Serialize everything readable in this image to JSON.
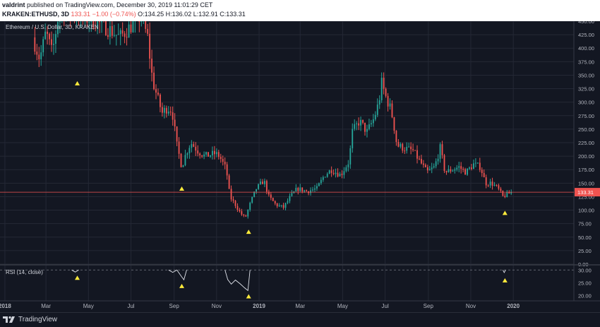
{
  "header": {
    "user": "valdrint",
    "published_text": "published on TradingView.com, December 30, 2019 11:01:29 CET",
    "symbol": "KRAKEN:ETHUSD, 3D",
    "last": "133.31",
    "change": "−1.00 (−0.74%)",
    "ohlc": "O:134.25 H:136.02 L:132.91 C:133.31"
  },
  "colors": {
    "background": "#131722",
    "grid": "#242835",
    "up": "#26a69a",
    "down": "#ef5350",
    "price_line": "#ef5350",
    "marker": "#ffeb3b",
    "rsi_line": "#e0e3eb"
  },
  "chart_data": {
    "type": "candlestick",
    "title": "Ethereum / U.S. Dollar, 3D, KRAKEN",
    "current_price_label": "133.31",
    "current_price": 133.31,
    "ylim": [
      0,
      450
    ],
    "y_ticks": [
      "0.00",
      "25.00",
      "50.00",
      "75.00",
      "100.00",
      "125.00",
      "150.00",
      "175.00",
      "200.00",
      "225.00",
      "250.00",
      "275.00",
      "300.00",
      "325.00",
      "350.00",
      "375.00",
      "400.00",
      "425.00",
      "450.00"
    ],
    "x_ticks": [
      "2018",
      "Mar",
      "May",
      "Jul",
      "Sep",
      "Nov",
      "2019",
      "Mar",
      "May",
      "Jul",
      "Sep",
      "Nov",
      "2020"
    ],
    "price_path": [
      [
        "2018-02-10",
        420
      ],
      [
        "2018-02-20",
        380
      ],
      [
        "2018-03-01",
        430
      ],
      [
        "2018-03-10",
        390
      ],
      [
        "2018-03-20",
        470
      ],
      [
        "2018-04-20",
        460
      ],
      [
        "2018-05-10",
        450
      ],
      [
        "2018-05-25",
        440
      ],
      [
        "2018-06-05",
        430
      ],
      [
        "2018-06-15",
        420
      ],
      [
        "2018-06-30",
        440
      ],
      [
        "2018-07-15",
        460
      ],
      [
        "2018-07-25",
        420
      ],
      [
        "2018-08-01",
        340
      ],
      [
        "2018-08-10",
        300
      ],
      [
        "2018-08-15",
        280
      ],
      [
        "2018-08-22",
        290
      ],
      [
        "2018-08-29",
        285
      ],
      [
        "2018-09-05",
        220
      ],
      [
        "2018-09-12",
        180
      ],
      [
        "2018-09-18",
        205
      ],
      [
        "2018-09-25",
        225
      ],
      [
        "2018-10-05",
        210
      ],
      [
        "2018-10-15",
        200
      ],
      [
        "2018-10-30",
        205
      ],
      [
        "2018-11-05",
        200
      ],
      [
        "2018-11-15",
        175
      ],
      [
        "2018-11-20",
        125
      ],
      [
        "2018-11-28",
        110
      ],
      [
        "2018-12-05",
        95
      ],
      [
        "2018-12-12",
        85
      ],
      [
        "2018-12-20",
        115
      ],
      [
        "2018-12-28",
        140
      ],
      [
        "2019-01-08",
        155
      ],
      [
        "2019-01-15",
        125
      ],
      [
        "2019-01-25",
        110
      ],
      [
        "2019-02-05",
        105
      ],
      [
        "2019-02-15",
        125
      ],
      [
        "2019-02-25",
        140
      ],
      [
        "2019-03-10",
        135
      ],
      [
        "2019-03-25",
        140
      ],
      [
        "2019-04-05",
        165
      ],
      [
        "2019-04-15",
        175
      ],
      [
        "2019-04-28",
        165
      ],
      [
        "2019-05-10",
        190
      ],
      [
        "2019-05-15",
        245
      ],
      [
        "2019-05-25",
        265
      ],
      [
        "2019-06-05",
        245
      ],
      [
        "2019-06-15",
        270
      ],
      [
        "2019-06-22",
        300
      ],
      [
        "2019-06-26",
        335
      ],
      [
        "2019-07-02",
        310
      ],
      [
        "2019-07-08",
        290
      ],
      [
        "2019-07-12",
        270
      ],
      [
        "2019-07-18",
        220
      ],
      [
        "2019-07-28",
        215
      ],
      [
        "2019-08-10",
        210
      ],
      [
        "2019-08-20",
        190
      ],
      [
        "2019-08-30",
        170
      ],
      [
        "2019-09-10",
        180
      ],
      [
        "2019-09-18",
        215
      ],
      [
        "2019-09-25",
        170
      ],
      [
        "2019-10-05",
        175
      ],
      [
        "2019-10-15",
        180
      ],
      [
        "2019-10-25",
        170
      ],
      [
        "2019-11-05",
        185
      ],
      [
        "2019-11-15",
        180
      ],
      [
        "2019-11-22",
        150
      ],
      [
        "2019-12-01",
        150
      ],
      [
        "2019-12-10",
        140
      ],
      [
        "2019-12-17",
        125
      ],
      [
        "2019-12-24",
        130
      ],
      [
        "2019-12-30",
        133
      ]
    ],
    "markers_price": [
      [
        "2018-04-15",
        335
      ],
      [
        "2018-09-12",
        140
      ],
      [
        "2018-12-17",
        60
      ],
      [
        "2019-12-20",
        95
      ]
    ],
    "rsi": {
      "label": "RSI (14, close)",
      "ylim": [
        18,
        32
      ],
      "y_ticks": [
        "20.00",
        "25.00",
        "30.00"
      ],
      "level": 30,
      "segments": [
        [
          [
            "2018-04-07",
            30
          ],
          [
            "2018-04-12",
            29.2
          ],
          [
            "2018-04-17",
            30
          ]
        ],
        [
          [
            "2018-08-24",
            30
          ],
          [
            "2018-08-30",
            29.1
          ],
          [
            "2018-09-05",
            30
          ],
          [
            "2018-09-12",
            27.3
          ],
          [
            "2018-09-15",
            26.2
          ],
          [
            "2018-09-19",
            30
          ]
        ],
        [
          [
            "2018-11-13",
            30
          ],
          [
            "2018-11-17",
            26.3
          ],
          [
            "2018-11-22",
            24.5
          ],
          [
            "2018-11-28",
            26.1
          ],
          [
            "2018-12-05",
            24.6
          ],
          [
            "2018-12-11",
            23.1
          ],
          [
            "2018-12-16",
            22.0
          ],
          [
            "2018-12-19",
            30
          ]
        ],
        [
          [
            "2019-12-17",
            30
          ],
          [
            "2019-12-19",
            29.0
          ],
          [
            "2019-12-21",
            30
          ]
        ]
      ],
      "markers": [
        [
          "2018-04-15",
          27.0
        ],
        [
          "2018-09-12",
          23.8
        ],
        [
          "2018-12-17",
          19.8
        ],
        [
          "2019-12-20",
          26.0
        ]
      ]
    }
  },
  "footer": {
    "brand": "TradingView"
  }
}
